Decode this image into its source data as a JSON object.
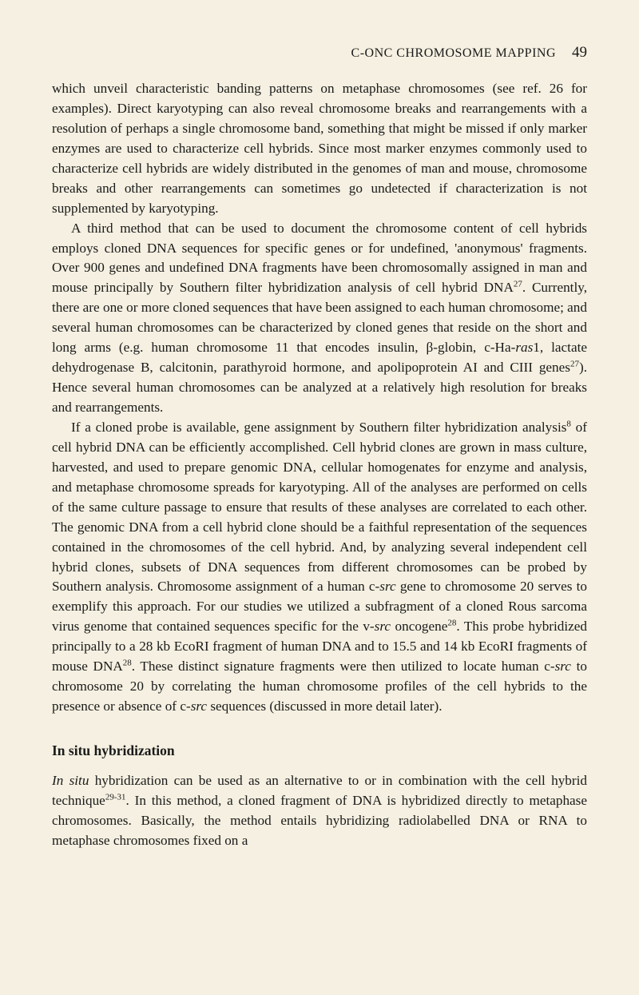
{
  "header": {
    "title": "C-ONC CHROMOSOME MAPPING",
    "page": "49"
  },
  "paragraphs": {
    "p1": "which unveil characteristic banding patterns on metaphase chromosomes (see ref. 26 for examples). Direct karyotyping can also reveal chromosome breaks and rearrangements with a resolution of perhaps a single chromosome band, something that might be missed if only marker enzymes are used to characterize cell hybrids. Since most marker enzymes commonly used to characterize cell hybrids are widely distributed in the genomes of man and mouse, chromosome breaks and other rearrangements can sometimes go undetected if characterization is not supplemented by karyotyping.",
    "p2_parts": {
      "a": "A third method that can be used to document the chromosome content of cell hybrids employs cloned DNA sequences for specific genes or for undefined, 'anonymous' fragments. Over 900 genes and undefined DNA fragments have been chromosomally assigned in man and mouse principally by Southern filter hybridization analysis of cell hybrid DNA",
      "sup1": "27",
      "b": ". Currently, there are one or more cloned sequences that have been assigned to each human chromosome; and several human chromosomes can be characterized by cloned genes that reside on the short and long arms (e.g. human chromosome 11 that encodes insulin, β-globin, c-Ha-",
      "ras1": "ras",
      "c": "1, lactate dehydrogenase B, calcitonin, parathyroid hormone, and apolipoprotein AI and CIII genes",
      "sup2": "27",
      "d": "). Hence several human chromosomes can be analyzed at a relatively high resolution for breaks and rearrangements."
    },
    "p3_parts": {
      "a": "If a cloned probe is available, gene assignment by Southern filter hybridization analysis",
      "sup1": "8",
      "b": " of cell hybrid DNA can be efficiently accomplished. Cell hybrid clones are grown in mass culture, harvested, and used to prepare genomic DNA, cellular homogenates for enzyme and analysis, and metaphase chromosome spreads for karyotyping. All of the analyses are performed on cells of the same culture passage to ensure that results of these analyses are correlated to each other. The genomic DNA from a cell hybrid clone should be a faithful representation of the sequences contained in the chromosomes of the cell hybrid. And, by analyzing several independent cell hybrid clones, subsets of DNA sequences from different chromosomes can be probed by Southern analysis. Chromosome assignment of a human c-",
      "src1": "src",
      "c": " gene to chromosome 20 serves to exemplify this approach. For our studies we utilized a subfragment of a cloned Rous sarcoma virus genome that contained sequences specific for the v-",
      "src2": "src",
      "d": " oncogene",
      "sup2": "28",
      "e": ". This probe hybridized principally to a 28 kb EcoRI fragment of human DNA and to 15.5 and 14 kb EcoRI fragments of mouse DNA",
      "sup3": "28",
      "f": ". These distinct signature fragments were then utilized to locate human c-",
      "src3": "src",
      "g": " to chromosome 20 by correlating the human chromosome profiles of the cell hybrids to the presence or absence of c-",
      "src4": "src",
      "h": " sequences (discussed in more detail later)."
    },
    "section_title": "In situ hybridization",
    "p4_parts": {
      "insitu": "In situ",
      "a": " hybridization can be used as an alternative to or in combination with the cell hybrid technique",
      "sup1": "29-31",
      "b": ". In this method, a cloned fragment of DNA is hybridized directly to metaphase chromosomes. Basically, the method entails hybridizing radiolabelled DNA or RNA to metaphase chromosomes fixed on a"
    }
  }
}
